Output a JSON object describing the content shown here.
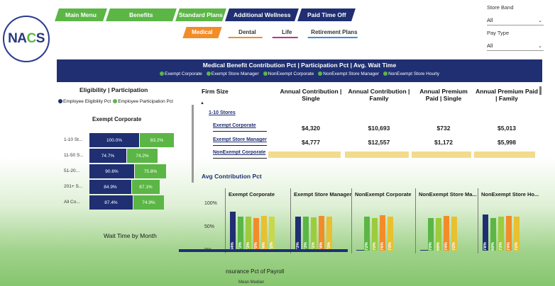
{
  "logo": {
    "text_a": "NA",
    "text_b": "C",
    "text_c": "S"
  },
  "nav": {
    "items": [
      {
        "label": "Main Menu",
        "style": "green",
        "width": 68
      },
      {
        "label": "Benefits",
        "style": "green",
        "width": 94
      },
      {
        "label": "Standard Plans",
        "style": "green",
        "width": 66
      },
      {
        "label": "Additional Wellness",
        "style": "navy",
        "width": 98
      },
      {
        "label": "Paid Time Off",
        "style": "navy",
        "width": 76
      }
    ]
  },
  "subtabs": [
    {
      "label": "Medical",
      "active": true,
      "color": "#f28c28",
      "width": 50
    },
    {
      "label": "Dental",
      "active": false,
      "color": "#f28c28",
      "width": 48
    },
    {
      "label": "Life",
      "active": false,
      "color": "#c0328c",
      "width": 36
    },
    {
      "label": "Retirement Plans",
      "active": false,
      "color": "#3a8fd9",
      "width": 70
    }
  ],
  "filters": {
    "store_band": {
      "label": "Store Band",
      "value": "All"
    },
    "pay_type": {
      "label": "Pay Type",
      "value": "All"
    }
  },
  "banner": {
    "title": "Medical Benefit Contribution Pct | Participation Pct | Avg. Wait Time",
    "legend": [
      "Exempt Corporate",
      "Exempt Store Manager",
      "NonExempt Corporate",
      "NonExempt Store Manager",
      "NonExempt Store Hourly"
    ]
  },
  "eligibility": {
    "title": "Eligibility | Participation",
    "legend": [
      {
        "label": "Employee Eligibility Pct",
        "color": "#1f2f72"
      },
      {
        "label": "Employee Participation Pct",
        "color": "#5bb646"
      }
    ],
    "group": "Exempt Corporate",
    "rows": [
      {
        "label": "1-10 St...",
        "eligibility": "100.0%",
        "participation": "83.2%",
        "elig_frac": 1.0,
        "part_frac": 0.832
      },
      {
        "label": "11-50 S...",
        "eligibility": "74.7%",
        "participation": "74.2%",
        "elig_frac": 0.747,
        "part_frac": 0.742
      },
      {
        "label": "51-20...",
        "eligibility": "90.6%",
        "participation": "75.8%",
        "elig_frac": 0.906,
        "part_frac": 0.758
      },
      {
        "label": "201+ S...",
        "eligibility": "84.9%",
        "participation": "67.1%",
        "elig_frac": 0.849,
        "part_frac": 0.671
      },
      {
        "label": "All Co...",
        "eligibility": "87.4%",
        "participation": "74.9%",
        "elig_frac": 0.874,
        "part_frac": 0.749
      }
    ]
  },
  "table": {
    "headers": [
      "Firm Size",
      "Annual Contribution | Single",
      "Annual Contribution | Family",
      "Annual Premium Paid | Single",
      "Annual Premium Paid | Family"
    ],
    "collapse_icon": "collapse-up-icon",
    "group": "1-10 Stores",
    "rows": [
      {
        "label": "Exempt Corporate",
        "values": [
          "$4,320",
          "$10,693",
          "$732",
          "$5,013"
        ]
      },
      {
        "label": "Exempt Store Manager",
        "values": [
          "$4,777",
          "$12,557",
          "$1,172",
          "$5,998"
        ]
      },
      {
        "label": "NonExempt Corporate",
        "values": [
          "",
          "",
          "",
          ""
        ]
      }
    ]
  },
  "avg_contribution": {
    "title": "Avg Contribution Pct",
    "y_ticks": [
      "100%",
      "50%",
      "0%"
    ],
    "panels": [
      {
        "title": "Exempt Corporate",
        "bars": [
          {
            "label": "84%",
            "value": 84,
            "color": "#1f2f72"
          },
          {
            "label": "73%",
            "value": 73,
            "color": "#5bb646"
          },
          {
            "label": "73%",
            "value": 73,
            "color": "#9ccc3c"
          },
          {
            "label": "70%",
            "value": 70,
            "color": "#f28c28"
          },
          {
            "label": "74%",
            "value": 74,
            "color": "#e8c030"
          },
          {
            "label": "72%",
            "value": 72,
            "color": "#c8d84a"
          }
        ]
      },
      {
        "title": "Exempt Store Manager",
        "bars": [
          {
            "label": "73%",
            "value": 73,
            "color": "#1f2f72"
          },
          {
            "label": "73%",
            "value": 73,
            "color": "#5bb646"
          },
          {
            "label": "71%",
            "value": 71,
            "color": "#9ccc3c"
          },
          {
            "label": "74%",
            "value": 74,
            "color": "#f28c28"
          },
          {
            "label": "73%",
            "value": 73,
            "color": "#e8c030"
          },
          {
            "label": "",
            "value": 0,
            "color": "#c8d84a"
          }
        ]
      },
      {
        "title": "NonExempt Corporate",
        "bars": [
          {
            "label": "",
            "value": 2,
            "color": "#1f2f72"
          },
          {
            "label": "72%",
            "value": 72,
            "color": "#5bb646"
          },
          {
            "label": "70%",
            "value": 70,
            "color": "#9ccc3c"
          },
          {
            "label": "76%",
            "value": 76,
            "color": "#f28c28"
          },
          {
            "label": "73%",
            "value": 73,
            "color": "#e8c030"
          },
          {
            "label": "",
            "value": 0,
            "color": "#c8d84a"
          }
        ]
      },
      {
        "title": "NonExempt Store Ma...",
        "bars": [
          {
            "label": "",
            "value": 2,
            "color": "#1f2f72"
          },
          {
            "label": "70%",
            "value": 70,
            "color": "#5bb646"
          },
          {
            "label": "69%",
            "value": 69,
            "color": "#9ccc3c"
          },
          {
            "label": "74%",
            "value": 74,
            "color": "#f28c28"
          },
          {
            "label": "72%",
            "value": 72,
            "color": "#e8c030"
          },
          {
            "label": "",
            "value": 0,
            "color": "#c8d84a"
          }
        ]
      },
      {
        "title": "NonExempt Store Ho...",
        "bars": [
          {
            "label": "78%",
            "value": 78,
            "color": "#1f2f72"
          },
          {
            "label": "69%",
            "value": 69,
            "color": "#5bb646"
          },
          {
            "label": "73%",
            "value": 73,
            "color": "#9ccc3c"
          },
          {
            "label": "74%",
            "value": 74,
            "color": "#f28c28"
          },
          {
            "label": "72%",
            "value": 72,
            "color": "#e8c030"
          },
          {
            "label": "",
            "value": 0,
            "color": "#c8d84a"
          }
        ]
      }
    ]
  },
  "wait_time": {
    "title": "Wait Time by Month"
  },
  "insurance": {
    "title": "nsurance Pct of Payroll",
    "legend": "Mean  Median"
  }
}
